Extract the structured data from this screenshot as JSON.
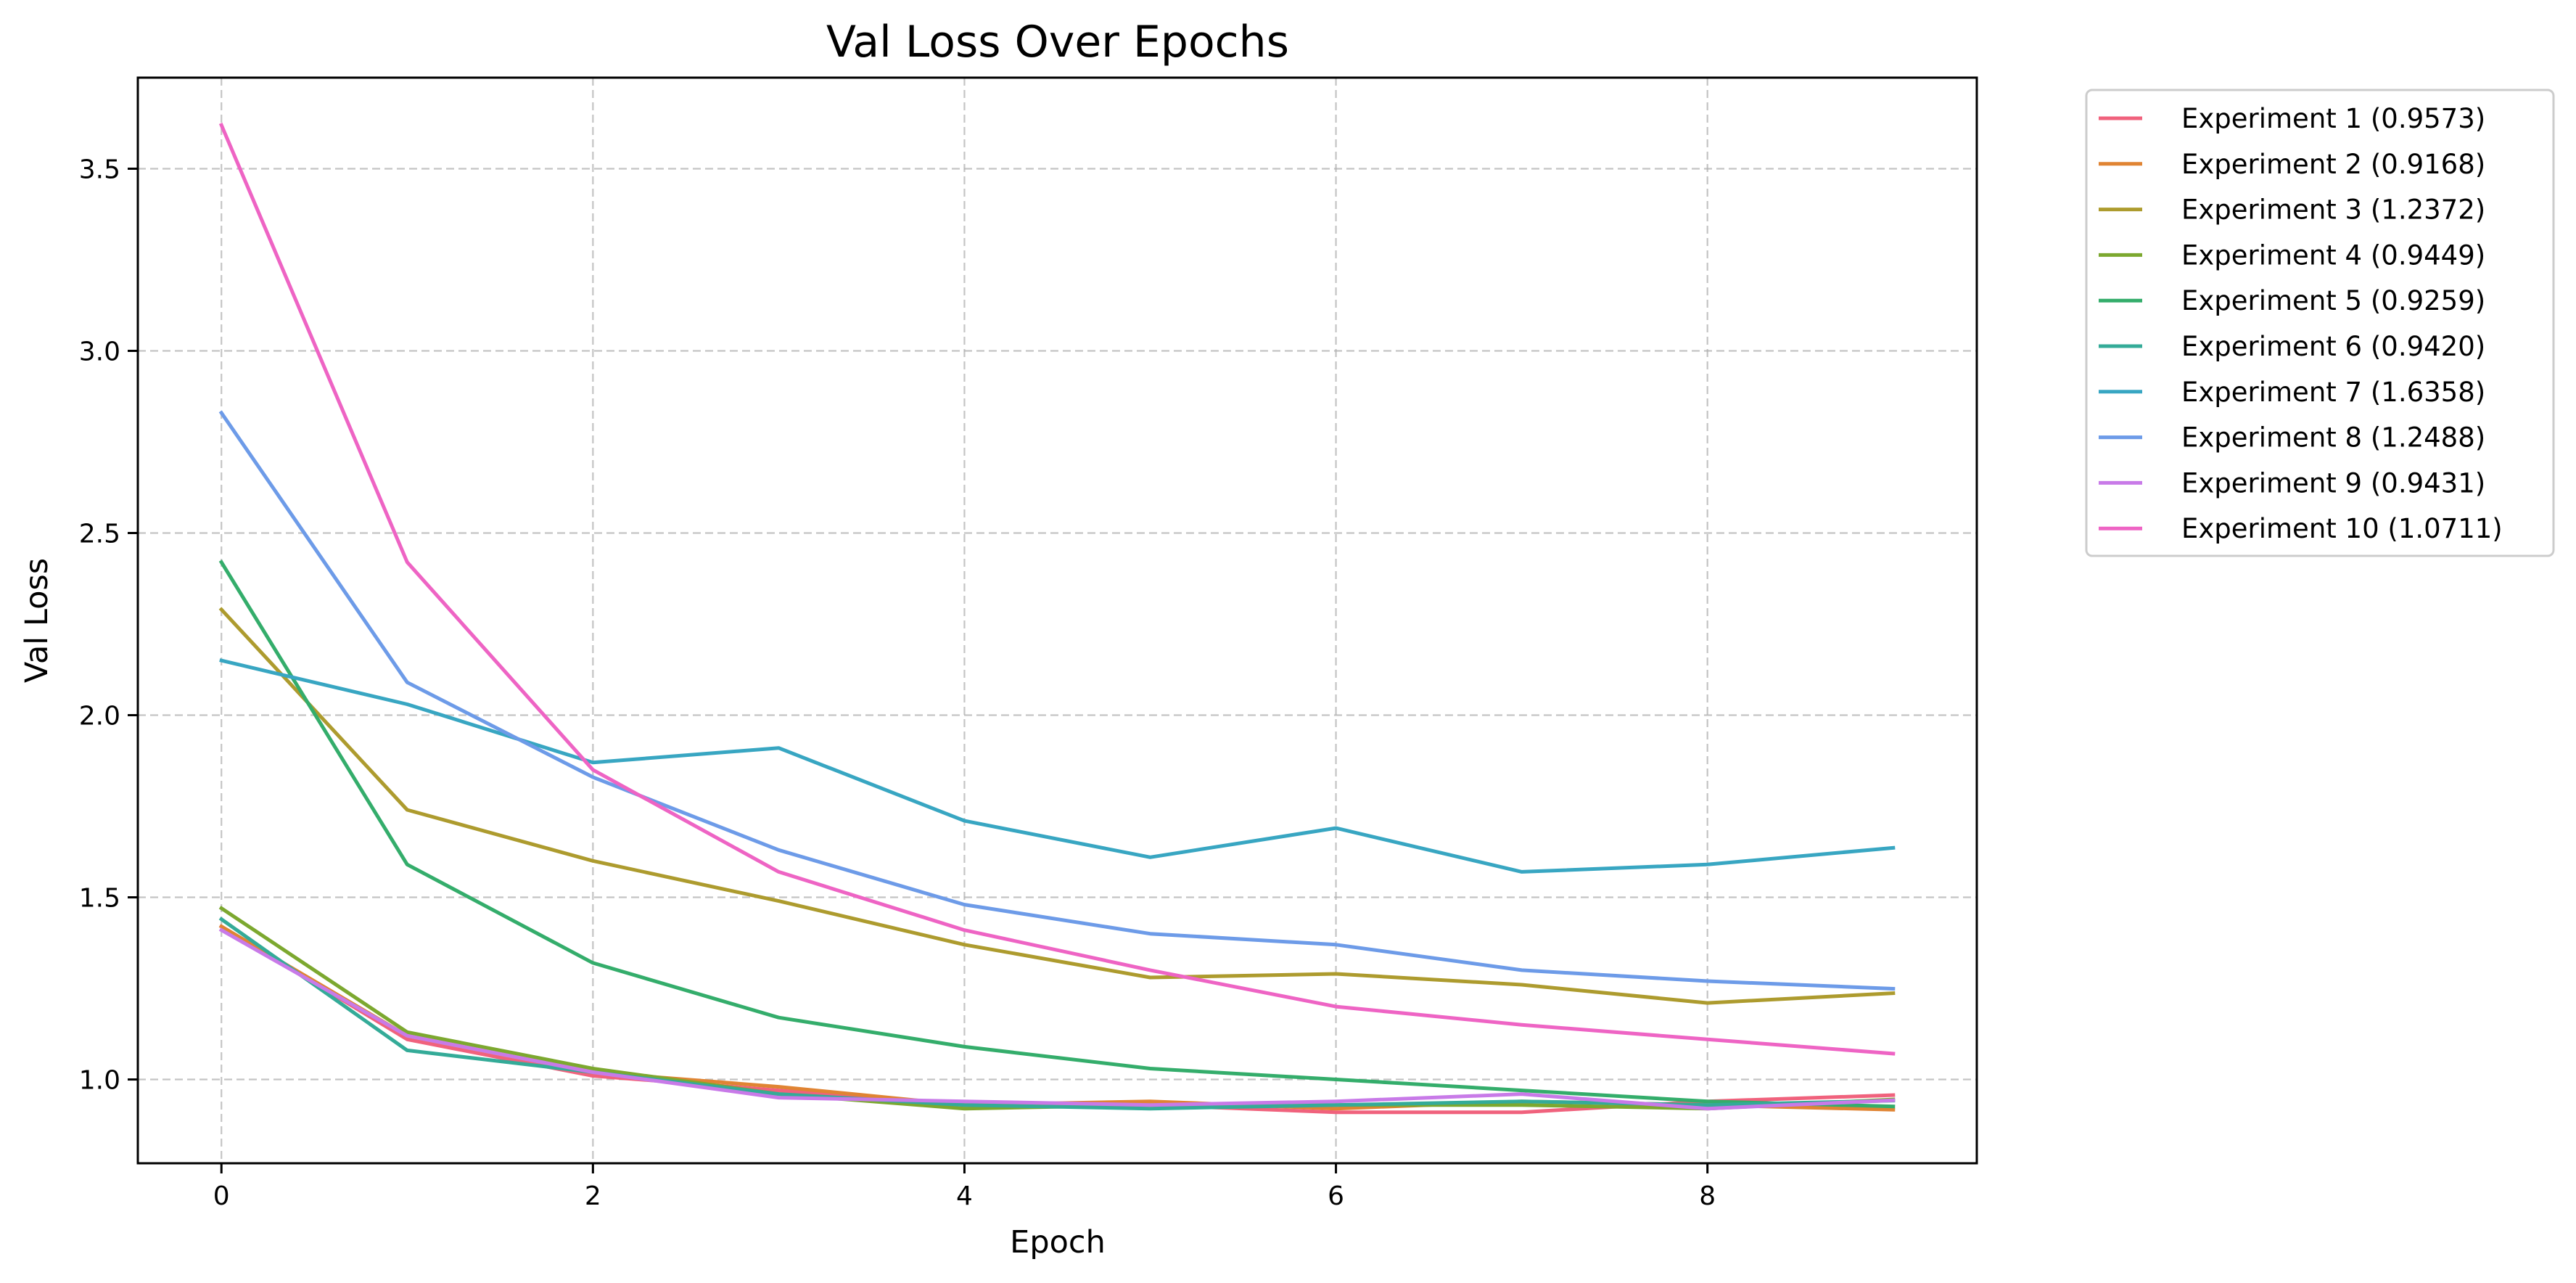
{
  "chart_data": {
    "type": "line",
    "title": "Val Loss Over Epochs",
    "xlabel": "Epoch",
    "ylabel": "Val Loss",
    "xlim": [
      -0.45,
      9.45
    ],
    "ylim": [
      0.77,
      3.75
    ],
    "x_ticks": [
      0,
      2,
      4,
      6,
      8
    ],
    "x_tick_labels": [
      "0",
      "2",
      "4",
      "6",
      "8"
    ],
    "y_ticks": [
      1.0,
      1.5,
      2.0,
      2.5,
      3.0,
      3.5
    ],
    "y_tick_labels": [
      "1.0",
      "1.5",
      "2.0",
      "2.5",
      "3.0",
      "3.5"
    ],
    "grid": true,
    "legend_position": "outside-top-right",
    "x": [
      0,
      1,
      2,
      3,
      4,
      5,
      6,
      7,
      8,
      9
    ],
    "series": [
      {
        "name": "Experiment 1 (0.9573)",
        "color": "#f0627d",
        "values": [
          1.42,
          1.11,
          1.01,
          0.97,
          0.93,
          0.93,
          0.91,
          0.91,
          0.94,
          0.957
        ]
      },
      {
        "name": "Experiment 2 (0.9168)",
        "color": "#e08433",
        "values": [
          1.42,
          1.12,
          1.02,
          0.98,
          0.93,
          0.94,
          0.92,
          0.94,
          0.93,
          0.917
        ]
      },
      {
        "name": "Experiment 3 (1.2372)",
        "color": "#ad9b2e",
        "values": [
          2.29,
          1.74,
          1.6,
          1.49,
          1.37,
          1.28,
          1.29,
          1.26,
          1.21,
          1.237
        ]
      },
      {
        "name": "Experiment 4 (0.9449)",
        "color": "#7ca82f",
        "values": [
          1.47,
          1.13,
          1.03,
          0.96,
          0.92,
          0.93,
          0.93,
          0.93,
          0.92,
          0.945
        ]
      },
      {
        "name": "Experiment 5 (0.9259)",
        "color": "#34ad6b",
        "values": [
          2.42,
          1.59,
          1.32,
          1.17,
          1.09,
          1.03,
          1.0,
          0.97,
          0.94,
          0.926
        ]
      },
      {
        "name": "Experiment 6 (0.9420)",
        "color": "#34ab98",
        "values": [
          1.44,
          1.08,
          1.02,
          0.96,
          0.93,
          0.92,
          0.93,
          0.94,
          0.93,
          0.942
        ]
      },
      {
        "name": "Experiment 7 (1.6358)",
        "color": "#38a6c2",
        "values": [
          2.15,
          2.03,
          1.87,
          1.91,
          1.71,
          1.61,
          1.69,
          1.57,
          1.59,
          1.636
        ]
      },
      {
        "name": "Experiment 8 (1.2488)",
        "color": "#6d9be8",
        "values": [
          2.83,
          2.09,
          1.83,
          1.63,
          1.48,
          1.4,
          1.37,
          1.3,
          1.27,
          1.249
        ]
      },
      {
        "name": "Experiment 9 (0.9431)",
        "color": "#c87ae8",
        "values": [
          1.41,
          1.12,
          1.02,
          0.95,
          0.94,
          0.93,
          0.94,
          0.96,
          0.92,
          0.943
        ]
      },
      {
        "name": "Experiment 10 (1.0711)",
        "color": "#ee64c4",
        "values": [
          3.62,
          2.42,
          1.85,
          1.57,
          1.41,
          1.3,
          1.2,
          1.15,
          1.11,
          1.071
        ]
      }
    ]
  }
}
